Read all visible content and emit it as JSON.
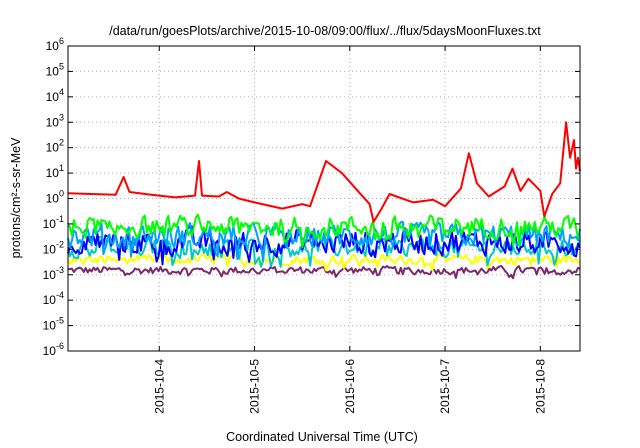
{
  "chart_data": {
    "type": "line",
    "title": "/data/run/goesPlots/archive/2015-10-08/09:00/flux/../flux/5daysMoonFluxes.txt",
    "xlabel": "Coordinated Universal Time (UTC)",
    "ylabel": "protons/cm²-s-sr-MeV",
    "yscale": "log",
    "ylim": [
      1e-06,
      1000000.0
    ],
    "xlim": [
      "2015-10-03 01:00",
      "2015-10-08 10:00"
    ],
    "grid": true,
    "y_ticks": [
      {
        "value": 1e-06,
        "base": "10",
        "exp": "-6"
      },
      {
        "value": 1e-05,
        "base": "10",
        "exp": "-5"
      },
      {
        "value": 0.0001,
        "base": "10",
        "exp": "-4"
      },
      {
        "value": 0.001,
        "base": "10",
        "exp": "-3"
      },
      {
        "value": 0.01,
        "base": "10",
        "exp": "-2"
      },
      {
        "value": 0.1,
        "base": "10",
        "exp": "-1"
      },
      {
        "value": 1,
        "base": "10",
        "exp": "0"
      },
      {
        "value": 10,
        "base": "10",
        "exp": "1"
      },
      {
        "value": 100,
        "base": "10",
        "exp": "2"
      },
      {
        "value": 1000,
        "base": "10",
        "exp": "3"
      },
      {
        "value": 10000,
        "base": "10",
        "exp": "4"
      },
      {
        "value": 100000,
        "base": "10",
        "exp": "5"
      },
      {
        "value": 1000000,
        "base": "10",
        "exp": "6"
      }
    ],
    "x_ticks": [
      {
        "value": "2015-10-04 00:00",
        "label": "2015-10-4"
      },
      {
        "value": "2015-10-05 00:00",
        "label": "2015-10-5"
      },
      {
        "value": "2015-10-06 00:00",
        "label": "2015-10-6"
      },
      {
        "value": "2015-10-07 00:00",
        "label": "2015-10-7"
      },
      {
        "value": "2015-10-08 00:00",
        "label": "2015-10-8"
      }
    ],
    "series": [
      {
        "color": "#ff0000",
        "kind": "keypoints",
        "points": [
          [
            "2015-10-03 01:00",
            1.6
          ],
          [
            "2015-10-03 07:00",
            1.5
          ],
          [
            "2015-10-03 13:00",
            1.4
          ],
          [
            "2015-10-03 15:00",
            7
          ],
          [
            "2015-10-03 16:30",
            1.8
          ],
          [
            "2015-10-03 22:00",
            1.4
          ],
          [
            "2015-10-04 04:00",
            1.1
          ],
          [
            "2015-10-04 09:00",
            1.3
          ],
          [
            "2015-10-04 10:00",
            30
          ],
          [
            "2015-10-04 10:45",
            1.3
          ],
          [
            "2015-10-04 15:00",
            1.2
          ],
          [
            "2015-10-04 17:00",
            1.8
          ],
          [
            "2015-10-04 20:00",
            1.0
          ],
          [
            "2015-10-05 00:00",
            0.7
          ],
          [
            "2015-10-05 07:00",
            0.4
          ],
          [
            "2015-10-05 12:00",
            0.6
          ],
          [
            "2015-10-05 14:00",
            0.5
          ],
          [
            "2015-10-05 18:00",
            30
          ],
          [
            "2015-10-05 22:00",
            10
          ],
          [
            "2015-10-06 02:00",
            2
          ],
          [
            "2015-10-06 05:00",
            0.6
          ],
          [
            "2015-10-06 06:00",
            0.12
          ],
          [
            "2015-10-06 08:00",
            0.4
          ],
          [
            "2015-10-06 10:00",
            1.5
          ],
          [
            "2015-10-06 16:00",
            0.7
          ],
          [
            "2015-10-06 21:00",
            0.9
          ],
          [
            "2015-10-07 00:00",
            0.5
          ],
          [
            "2015-10-07 04:00",
            2.5
          ],
          [
            "2015-10-07 06:00",
            60
          ],
          [
            "2015-10-07 08:00",
            4
          ],
          [
            "2015-10-07 11:00",
            1.2
          ],
          [
            "2015-10-07 15:00",
            3
          ],
          [
            "2015-10-07 17:00",
            15
          ],
          [
            "2015-10-07 19:00",
            2
          ],
          [
            "2015-10-07 21:00",
            6
          ],
          [
            "2015-10-08 00:00",
            2
          ],
          [
            "2015-10-08 01:00",
            0.2
          ],
          [
            "2015-10-08 03:00",
            1.5
          ],
          [
            "2015-10-08 05:00",
            4
          ],
          [
            "2015-10-08 06:30",
            1000
          ],
          [
            "2015-10-08 07:30",
            40
          ],
          [
            "2015-10-08 08:30",
            200
          ],
          [
            "2015-10-08 09:00",
            15
          ],
          [
            "2015-10-08 09:30",
            40
          ],
          [
            "2015-10-08 10:00",
            12
          ]
        ]
      },
      {
        "color": "#00ff00",
        "kind": "noisy",
        "level": 0.08,
        "spread": 0.55
      },
      {
        "color": "#00a0ff",
        "kind": "noisy",
        "level": 0.035,
        "spread": 0.6
      },
      {
        "color": "#0000ff",
        "kind": "noisy",
        "level": 0.02,
        "spread": 0.65
      },
      {
        "color": "#00c8c8",
        "kind": "noisy",
        "level": 0.012,
        "spread": 0.5
      },
      {
        "color": "#ffff00",
        "kind": "noisy",
        "level": 0.004,
        "spread": 0.25
      },
      {
        "color": "#7a2a6a",
        "kind": "noisy",
        "level": 0.0015,
        "spread": 0.2
      }
    ]
  }
}
